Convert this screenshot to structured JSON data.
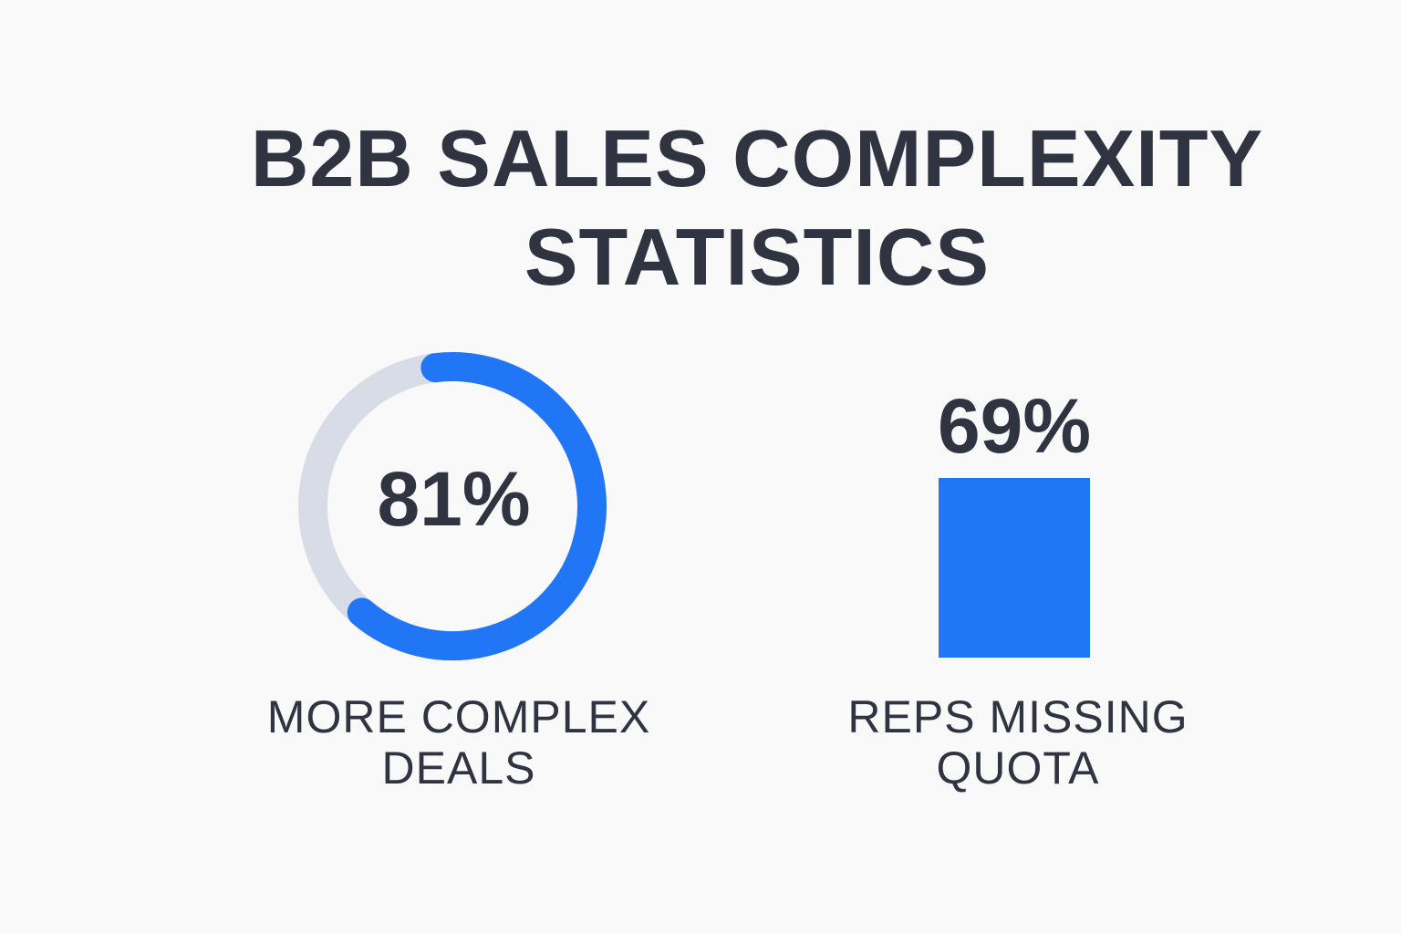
{
  "title": {
    "line1": "B2B SALES COMPLEXITY",
    "line2": "STATISTICS"
  },
  "colors": {
    "background": "#f9f9fa",
    "text": "#2f3440",
    "accent": "#2176f5",
    "track": "#d8dce6"
  },
  "chart_data": [
    {
      "type": "pie",
      "value": 81,
      "value_label": "81%",
      "label_lines": [
        "MORE COMPLEX",
        "DEALS"
      ]
    },
    {
      "type": "bar",
      "value": 69,
      "value_label": "69%",
      "label_lines": [
        "REPS MISSING",
        "QUOTA"
      ]
    }
  ]
}
